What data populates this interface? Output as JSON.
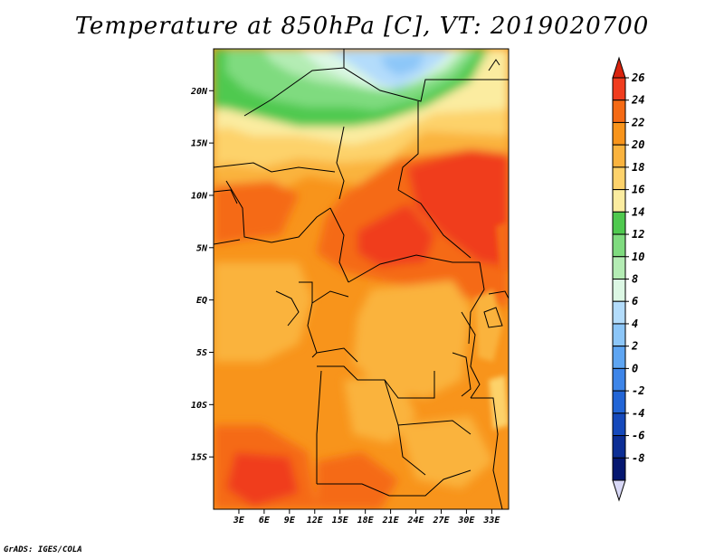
{
  "title": "Temperature at 850hPa [C], VT: 2019020700",
  "credit": "GrADS: IGES/COLA",
  "map": {
    "lat_range": [
      -20,
      24
    ],
    "lon_range": [
      0,
      35
    ],
    "lat_labels": [
      "20N",
      "15N",
      "10N",
      "5N",
      "EQ",
      "5S",
      "10S",
      "15S"
    ],
    "lat_values": [
      20,
      15,
      10,
      5,
      0,
      -5,
      -10,
      -15
    ],
    "lon_labels": [
      "3E",
      "6E",
      "9E",
      "12E",
      "15E",
      "18E",
      "21E",
      "24E",
      "27E",
      "30E",
      "33E"
    ],
    "lon_values": [
      3,
      6,
      9,
      12,
      15,
      18,
      21,
      24,
      27,
      30,
      33
    ]
  },
  "colorbar": {
    "labels": [
      "26",
      "24",
      "22",
      "20",
      "18",
      "16",
      "14",
      "12",
      "10",
      "8",
      "6",
      "4",
      "2",
      "0",
      "-2",
      "-4",
      "-6",
      "-8"
    ],
    "colors": [
      "#f03c1e",
      "#f56a14",
      "#f8941b",
      "#fab33e",
      "#fdd26b",
      "#fbeca0",
      "#4fc94f",
      "#7fdb7f",
      "#b4ecb4",
      "#dcf7e4",
      "#b3dcfb",
      "#8cc6f8",
      "#5ea5f2",
      "#3d85e8",
      "#2265d6",
      "#1549bb",
      "#0c2e95",
      "#051770"
    ],
    "top_color": "#d9230e",
    "bottom_color": "#d8d8f6"
  }
}
